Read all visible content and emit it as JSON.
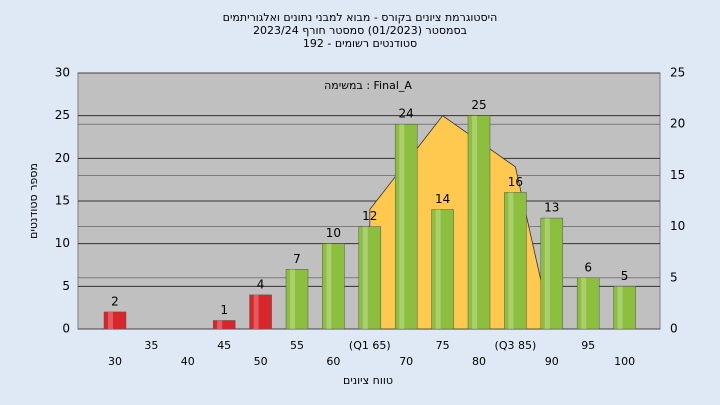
{
  "chart_data": {
    "type": "bar",
    "title_lines": [
      "היסטוגרמת ציונים בקורס - מבוא למבני נתונים ואלגוריתמים",
      "בסמסטר  (01/2023)  סמסטר חורף  2023/24",
      "סטודנטים רשומים - 192"
    ],
    "annotation": "במשימה : Final_A",
    "y_label": "מספר סטודנטים",
    "x_label": "טווח ציונים",
    "categories": [
      "30",
      "35",
      "40",
      "45",
      "50",
      "55",
      "60",
      "(Q1 65)",
      "70",
      "75",
      "80",
      "(Q3 85)",
      "90",
      "95",
      "100"
    ],
    "series": [
      {
        "type": "area",
        "color": "#ffc94f",
        "values": [
          null,
          null,
          null,
          null,
          null,
          null,
          null,
          14,
          19.5,
          25,
          22,
          19,
          0,
          null,
          null
        ]
      },
      {
        "type": "bar",
        "values": [
          2,
          null,
          null,
          1,
          4,
          7,
          10,
          12,
          24,
          14,
          25,
          16,
          13,
          6,
          5
        ],
        "colors": [
          "#d9262a",
          "#d9262a",
          "#d9262a",
          "#d9262a",
          "#d9262a",
          "#8dbf3e",
          "#8dbf3e",
          "#8dbf3e",
          "#8dbf3e",
          "#8dbf3e",
          "#8dbf3e",
          "#8dbf3e",
          "#8dbf3e",
          "#8dbf3e",
          "#8dbf3e"
        ]
      }
    ],
    "ylim": [
      0,
      30
    ],
    "yticks": [
      0,
      5,
      10,
      15,
      20,
      25,
      30
    ],
    "y2lim": [
      0,
      25
    ],
    "y2ticks": [
      0,
      5,
      10,
      15,
      20,
      25
    ],
    "grid": true
  }
}
